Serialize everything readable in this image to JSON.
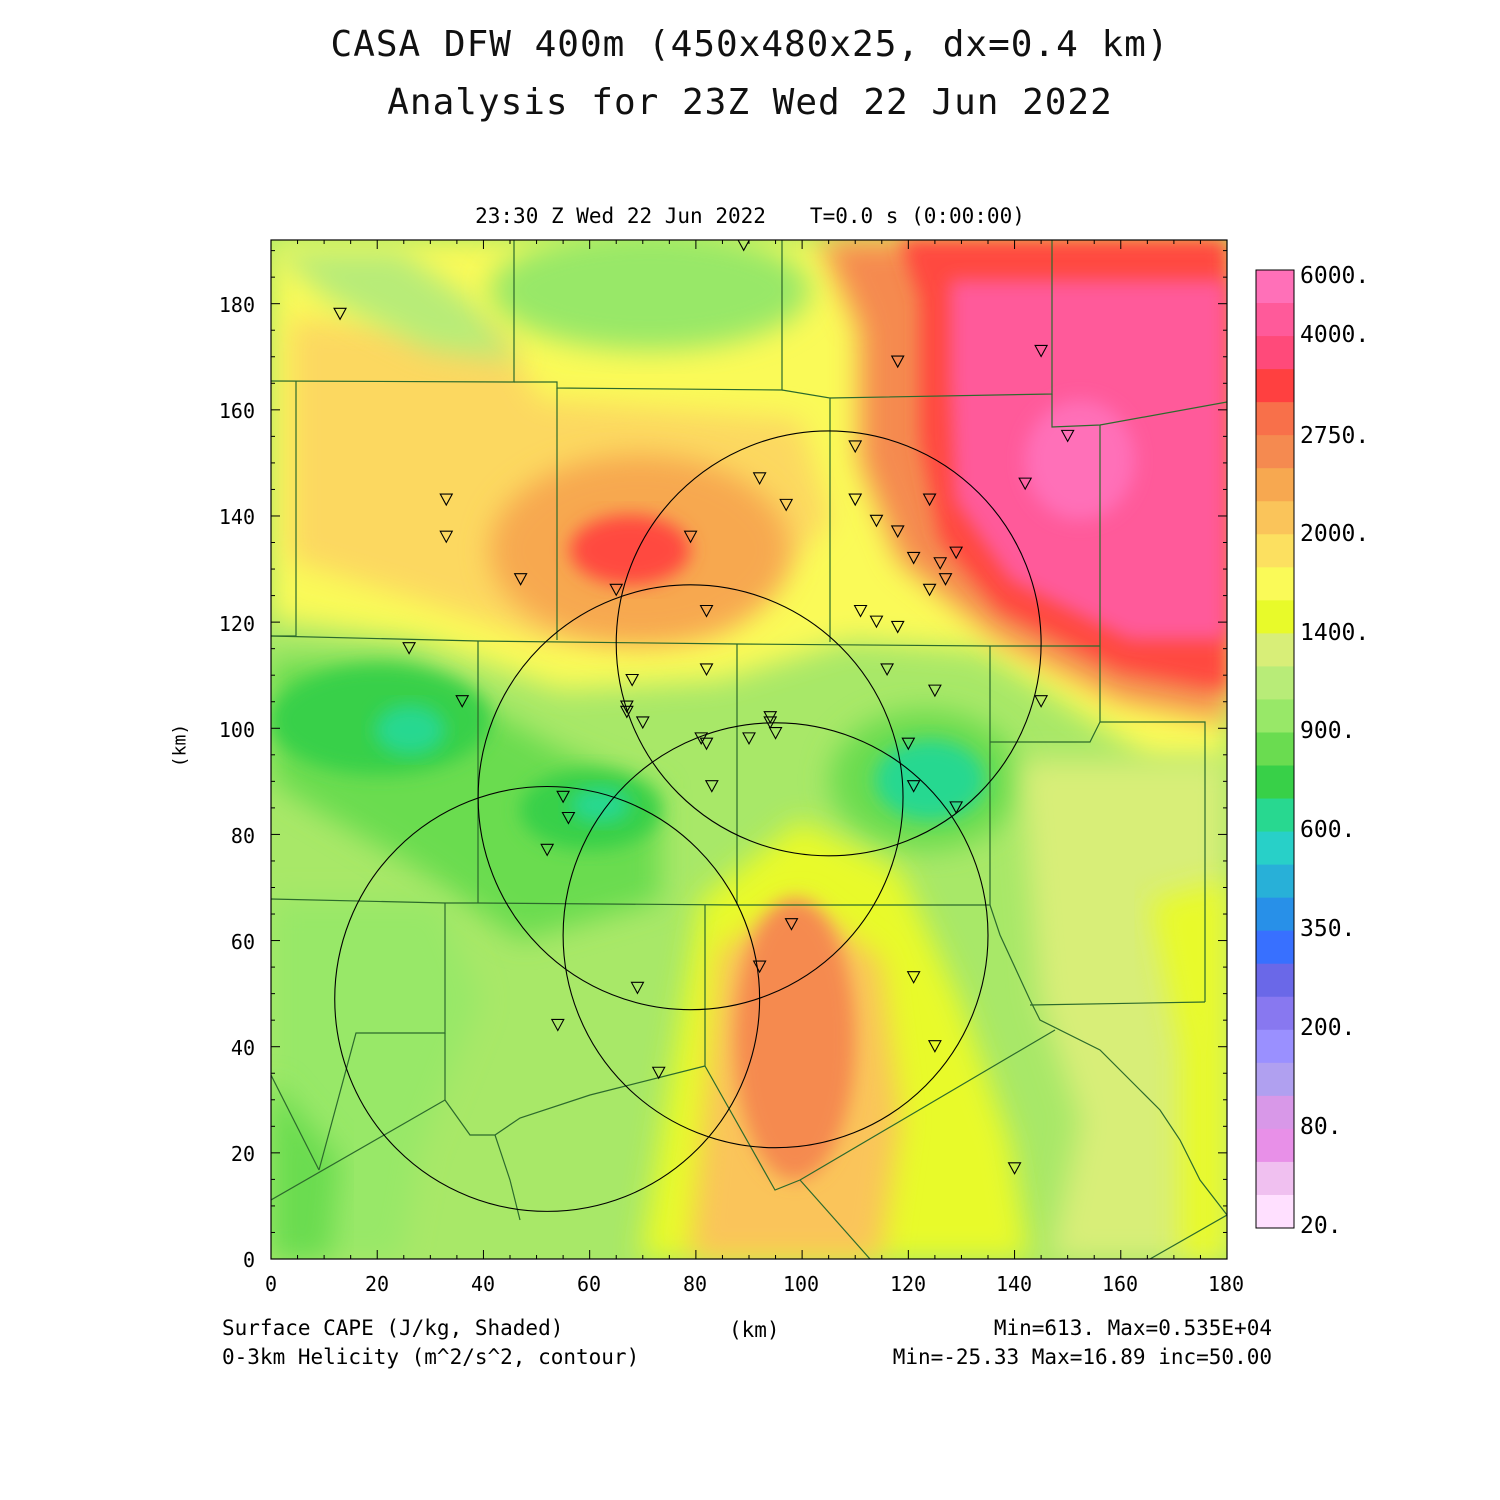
{
  "title": {
    "line1": "CASA DFW 400m (450x480x25, dx=0.4 km)",
    "line2": "Analysis for 23Z Wed 22 Jun 2022"
  },
  "subtitle": {
    "time": "23:30 Z Wed 22 Jun 2022",
    "timer": "T=0.0 s (0:00:00)"
  },
  "axes": {
    "x_label": "(km)",
    "y_label": "(km)",
    "x_ticks": [
      "0",
      "20",
      "40",
      "60",
      "80",
      "100",
      "120",
      "140",
      "160",
      "180"
    ],
    "y_ticks": [
      "0",
      "20",
      "40",
      "60",
      "80",
      "100",
      "120",
      "140",
      "160",
      "180"
    ],
    "x_range": [
      0,
      180
    ],
    "y_range": [
      0,
      192
    ]
  },
  "footer": {
    "left1": "Surface CAPE (J/kg, Shaded)",
    "left2": "0-3km Helicity (m^2/s^2, contour)",
    "center": "(km)",
    "right1": "Min=613. Max=0.535E+04",
    "right2": "Min=-25.33 Max=16.89 inc=50.00"
  },
  "colorbar": {
    "labels": [
      "6000.",
      "4000.",
      "2750.",
      "2000.",
      "1400.",
      "900.",
      "600.",
      "350.",
      "200.",
      "80.",
      "20."
    ],
    "colors": [
      "#ff70b8",
      "#ff5a9a",
      "#ff4a7a",
      "#ff4040",
      "#f8704a",
      "#f58a50",
      "#f7a850",
      "#fac45a",
      "#fce060",
      "#fafa58",
      "#e8fa2a",
      "#d8ee78",
      "#b8ec78",
      "#98e868",
      "#6adc50",
      "#38d048",
      "#28d890",
      "#28d0c8",
      "#28b0d8",
      "#2890e8",
      "#3870ff",
      "#6a68e8",
      "#8878f0",
      "#9a90ff",
      "#b0a0f0",
      "#d898e8",
      "#e890e8",
      "#f0c0f0",
      "#ffe0ff"
    ]
  },
  "field": {
    "background": "#a8e868",
    "regions": [
      {
        "name": "tan-northwest",
        "color": "#fcd860"
      },
      {
        "name": "orange-north",
        "color": "#f7a850"
      },
      {
        "name": "red-north-max",
        "color": "#ff4a40"
      },
      {
        "name": "pink-northeast",
        "color": "#ff5a9a"
      },
      {
        "name": "pink-northeast-core",
        "color": "#ff70b8"
      },
      {
        "name": "green-west",
        "color": "#38d048"
      },
      {
        "name": "teal-west",
        "color": "#28d890"
      },
      {
        "name": "orange-south",
        "color": "#f58a50"
      },
      {
        "name": "yellow-south",
        "color": "#e8fa2a"
      }
    ]
  },
  "radars": [
    {
      "name": "radar-circle-1",
      "cx_km": 52,
      "cy_km": 49,
      "r_km": 40
    },
    {
      "name": "radar-circle-2",
      "cx_km": 79,
      "cy_km": 87,
      "r_km": 40
    },
    {
      "name": "radar-circle-3",
      "cx_km": 105,
      "cy_km": 116,
      "r_km": 40
    },
    {
      "name": "radar-circle-4",
      "cx_km": 95,
      "cy_km": 61,
      "r_km": 40
    }
  ],
  "stations_km": [
    [
      13,
      178
    ],
    [
      89,
      191
    ],
    [
      118,
      169
    ],
    [
      145,
      171
    ],
    [
      150,
      155
    ],
    [
      110,
      153
    ],
    [
      142,
      146
    ],
    [
      92,
      147
    ],
    [
      97,
      142
    ],
    [
      33,
      143
    ],
    [
      110,
      143
    ],
    [
      124,
      143
    ],
    [
      33,
      136
    ],
    [
      79,
      136
    ],
    [
      114,
      139
    ],
    [
      118,
      137
    ],
    [
      129,
      133
    ],
    [
      126,
      131
    ],
    [
      127,
      128
    ],
    [
      121,
      132
    ],
    [
      124,
      126
    ],
    [
      47,
      128
    ],
    [
      65,
      126
    ],
    [
      82,
      122
    ],
    [
      111,
      122
    ],
    [
      114,
      120
    ],
    [
      118,
      119
    ],
    [
      26,
      115
    ],
    [
      82,
      111
    ],
    [
      116,
      111
    ],
    [
      36,
      105
    ],
    [
      68,
      109
    ],
    [
      125,
      107
    ],
    [
      145,
      105
    ],
    [
      67,
      104
    ],
    [
      67,
      103
    ],
    [
      70,
      101
    ],
    [
      94,
      102
    ],
    [
      94,
      101
    ],
    [
      95,
      99
    ],
    [
      90,
      98
    ],
    [
      81,
      98
    ],
    [
      82,
      97
    ],
    [
      120,
      97
    ],
    [
      83,
      89
    ],
    [
      121,
      89
    ],
    [
      55,
      87
    ],
    [
      56,
      83
    ],
    [
      129,
      85
    ],
    [
      52,
      77
    ],
    [
      98,
      63
    ],
    [
      92,
      55
    ],
    [
      121,
      53
    ],
    [
      69,
      51
    ],
    [
      54,
      44
    ],
    [
      125,
      40
    ],
    [
      73,
      35
    ],
    [
      140,
      17
    ]
  ]
}
